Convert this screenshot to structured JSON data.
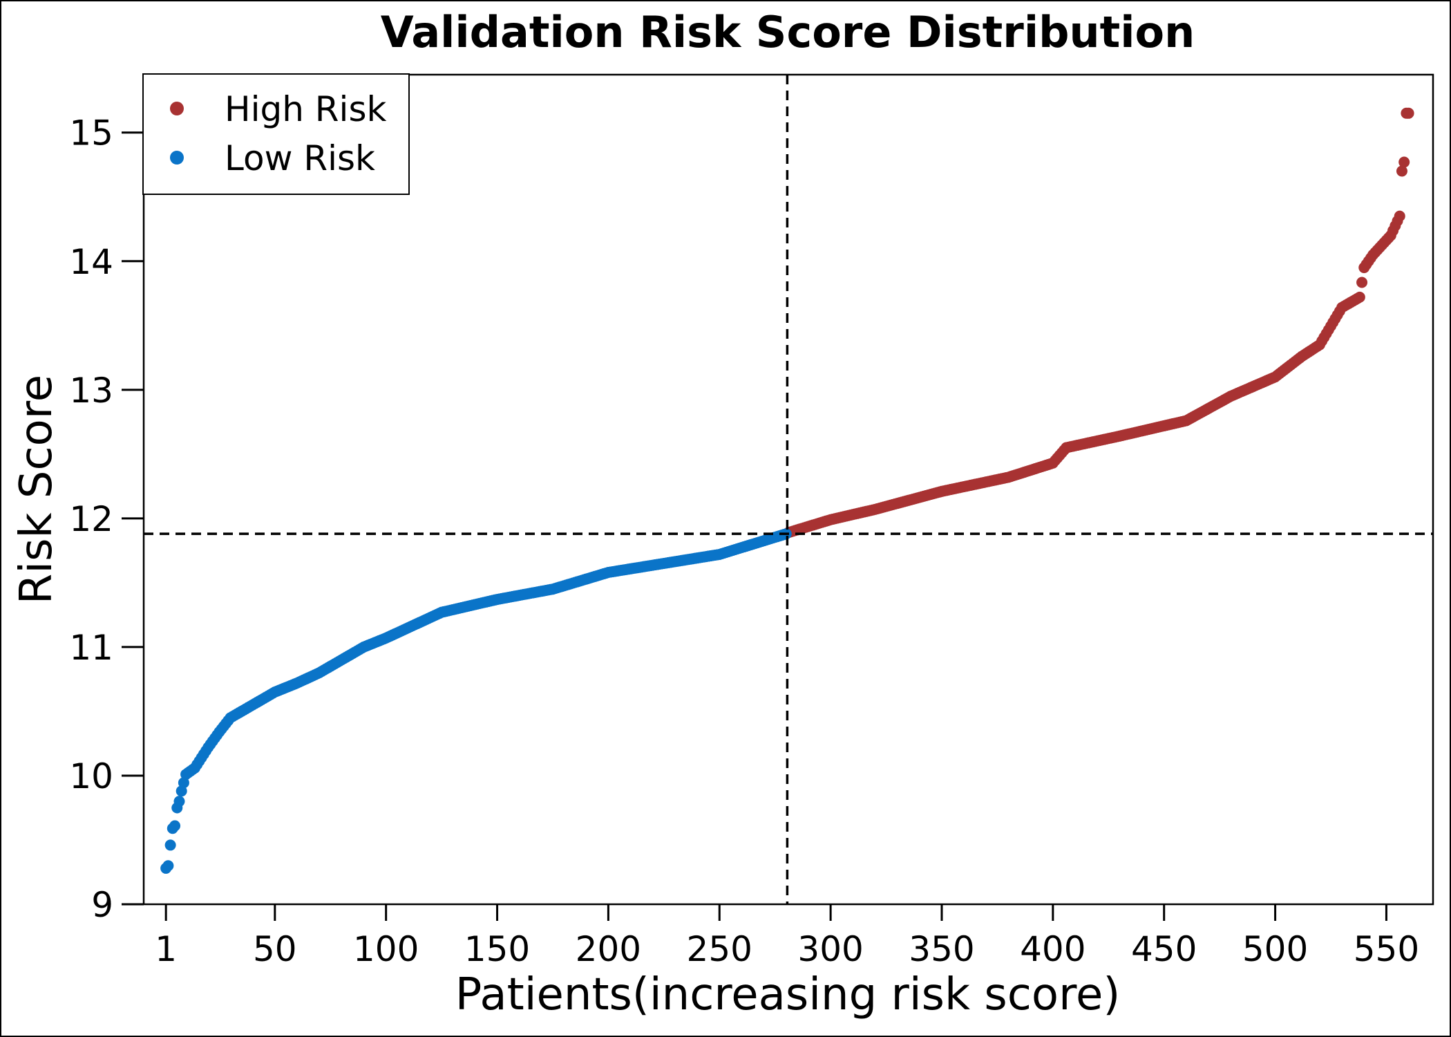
{
  "chart_data": {
    "type": "scatter",
    "title": "Validation Risk Score Distribution",
    "xlabel": "Patients(increasing risk score)",
    "ylabel": "Risk Score",
    "xlim": [
      -9,
      571
    ],
    "ylim": [
      9,
      15.45
    ],
    "x_ticks": [
      1,
      50,
      100,
      150,
      200,
      250,
      300,
      350,
      400,
      450,
      500,
      550
    ],
    "y_ticks": [
      9,
      10,
      11,
      12,
      13,
      14,
      15
    ],
    "n_patients": 560,
    "cutoff_patient": 280,
    "cutoff_score": 11.88,
    "grid": false,
    "legend_position": "top-left",
    "series": [
      {
        "name": "High Risk",
        "color": "#a83232",
        "x_range": [
          281,
          560
        ],
        "curve": [
          [
            281,
            11.89
          ],
          [
            300,
            11.99
          ],
          [
            320,
            12.07
          ],
          [
            350,
            12.21
          ],
          [
            380,
            12.32
          ],
          [
            400,
            12.43
          ],
          [
            406,
            12.55
          ],
          [
            430,
            12.64
          ],
          [
            460,
            12.76
          ],
          [
            480,
            12.95
          ],
          [
            500,
            13.1
          ],
          [
            512,
            13.26
          ],
          [
            520,
            13.35
          ],
          [
            530,
            13.64
          ],
          [
            538,
            13.72
          ],
          [
            540,
            13.95
          ],
          [
            544,
            14.05
          ],
          [
            552,
            14.2
          ],
          [
            556,
            14.35
          ],
          [
            557,
            14.7
          ],
          [
            558,
            14.77
          ],
          [
            559,
            15.15
          ],
          [
            560,
            15.15
          ]
        ]
      },
      {
        "name": "Low Risk",
        "color": "#0a74c8",
        "x_range": [
          1,
          280
        ],
        "curve": [
          [
            1,
            9.28
          ],
          [
            2,
            9.3
          ],
          [
            3,
            9.46
          ],
          [
            4,
            9.59
          ],
          [
            5,
            9.61
          ],
          [
            6,
            9.75
          ],
          [
            7,
            9.8
          ],
          [
            8,
            9.88
          ],
          [
            10,
            10.01
          ],
          [
            14,
            10.06
          ],
          [
            20,
            10.22
          ],
          [
            25,
            10.34
          ],
          [
            30,
            10.45
          ],
          [
            40,
            10.55
          ],
          [
            50,
            10.65
          ],
          [
            60,
            10.72
          ],
          [
            70,
            10.8
          ],
          [
            80,
            10.9
          ],
          [
            90,
            11.0
          ],
          [
            100,
            11.07
          ],
          [
            110,
            11.15
          ],
          [
            125,
            11.27
          ],
          [
            150,
            11.37
          ],
          [
            175,
            11.45
          ],
          [
            200,
            11.58
          ],
          [
            225,
            11.65
          ],
          [
            250,
            11.72
          ],
          [
            265,
            11.8
          ],
          [
            280,
            11.88
          ]
        ]
      }
    ]
  }
}
